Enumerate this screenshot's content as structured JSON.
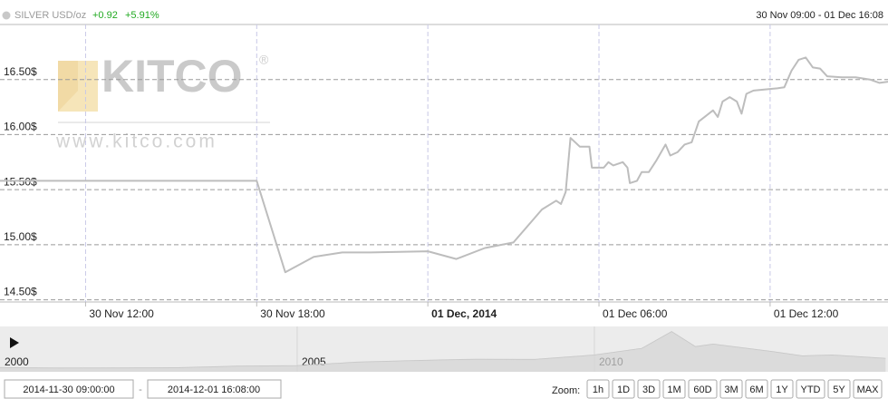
{
  "chart_data": {
    "type": "line",
    "title": "SILVER USD/oz",
    "change": "+0.92",
    "change_pct": "+5.91%",
    "range_label": "30 Nov 09:00 - 01 Dec 16:08",
    "color": "#bdbdbd",
    "grid": true,
    "watermark": {
      "brand": "KITCO",
      "registered": "®",
      "url": "www.kitco.com"
    },
    "x": [
      "2014-11-30 09:00",
      "2014-11-30 18:00",
      "2014-11-30 19:00",
      "2014-11-30 20:00",
      "2014-11-30 21:00",
      "2014-11-30 22:00",
      "2014-12-01 00:00",
      "2014-12-01 01:00",
      "2014-12-01 02:00",
      "2014-12-01 03:00",
      "2014-12-01 04:00",
      "2014-12-01 04:30",
      "2014-12-01 04:40",
      "2014-12-01 04:50",
      "2014-12-01 05:00",
      "2014-12-01 05:20",
      "2014-12-01 05:40",
      "2014-12-01 05:45",
      "2014-12-01 06:10",
      "2014-12-01 06:20",
      "2014-12-01 06:30",
      "2014-12-01 06:50",
      "2014-12-01 07:00",
      "2014-12-01 07:05",
      "2014-12-01 07:20",
      "2014-12-01 07:30",
      "2014-12-01 07:45",
      "2014-12-01 08:00",
      "2014-12-01 08:20",
      "2014-12-01 08:30",
      "2014-12-01 08:45",
      "2014-12-01 09:00",
      "2014-12-01 09:15",
      "2014-12-01 09:30",
      "2014-12-01 09:45",
      "2014-12-01 10:00",
      "2014-12-01 10:10",
      "2014-12-01 10:20",
      "2014-12-01 10:35",
      "2014-12-01 10:50",
      "2014-12-01 11:00",
      "2014-12-01 11:10",
      "2014-12-01 11:25",
      "2014-12-01 12:15",
      "2014-12-01 12:30",
      "2014-12-01 12:45",
      "2014-12-01 13:00",
      "2014-12-01 13:15",
      "2014-12-01 13:30",
      "2014-12-01 13:45",
      "2014-12-01 14:00",
      "2014-12-01 14:30",
      "2014-12-01 15:00",
      "2014-12-01 15:30",
      "2014-12-01 15:50",
      "2014-12-01 16:08"
    ],
    "values": [
      15.58,
      15.58,
      14.75,
      14.89,
      14.93,
      14.93,
      14.94,
      14.87,
      14.97,
      15.02,
      15.32,
      15.4,
      15.37,
      15.48,
      15.97,
      15.89,
      15.89,
      15.7,
      15.7,
      15.75,
      15.72,
      15.75,
      15.7,
      15.56,
      15.58,
      15.66,
      15.66,
      15.76,
      15.91,
      15.81,
      15.84,
      15.91,
      15.93,
      16.12,
      16.17,
      16.22,
      16.16,
      16.3,
      16.34,
      16.3,
      16.19,
      16.37,
      16.4,
      16.42,
      16.43,
      16.58,
      16.68,
      16.7,
      16.61,
      16.6,
      16.53,
      16.52,
      16.52,
      16.5,
      16.47,
      16.48
    ],
    "xlim": [
      "2014-11-30 09:00",
      "2014-12-01 16:08"
    ],
    "xticks": [
      {
        "value": "2014-11-30 12:00",
        "label": "30 Nov 12:00"
      },
      {
        "value": "2014-11-30 18:00",
        "label": "30 Nov 18:00"
      },
      {
        "value": "2014-12-01 00:00",
        "label": "01 Dec, 2014",
        "bold": true
      },
      {
        "value": "2014-12-01 06:00",
        "label": "01 Dec 06:00"
      },
      {
        "value": "2014-12-01 12:00",
        "label": "01 Dec 12:00"
      }
    ],
    "ylim": [
      14.48,
      17.0
    ],
    "yticks": [
      {
        "value": 14.5,
        "label": "14.50$"
      },
      {
        "value": 15.0,
        "label": "15.00$"
      },
      {
        "value": 15.5,
        "label": "15.50$"
      },
      {
        "value": 16.0,
        "label": "16.00$"
      },
      {
        "value": 16.5,
        "label": "16.50$"
      }
    ],
    "navigator": {
      "x": [
        2000,
        2001,
        2002,
        2003,
        2004,
        2005,
        2006,
        2007,
        2008,
        2009,
        2010,
        2010.8,
        2011.3,
        2011.7,
        2012,
        2013,
        2013.5,
        2014,
        2014.9
      ],
      "values": [
        5,
        4.4,
        4.6,
        4.9,
        6.7,
        7.3,
        11.5,
        13.4,
        15,
        14.7,
        20,
        28,
        48,
        30,
        33,
        24,
        19,
        20,
        16
      ],
      "xlim": [
        2000,
        2014.94
      ],
      "ylim": [
        0,
        52
      ],
      "xticks": [
        2000,
        2005,
        2010
      ]
    }
  },
  "controls": {
    "from": "2014-11-30 09:00:00",
    "separator": "-",
    "to": "2014-12-01 16:08:00",
    "zoom_label": "Zoom:",
    "zoom_buttons": [
      "1h",
      "1D",
      "3D",
      "1M",
      "60D",
      "3M",
      "6M",
      "1Y",
      "YTD",
      "5Y",
      "MAX"
    ]
  }
}
